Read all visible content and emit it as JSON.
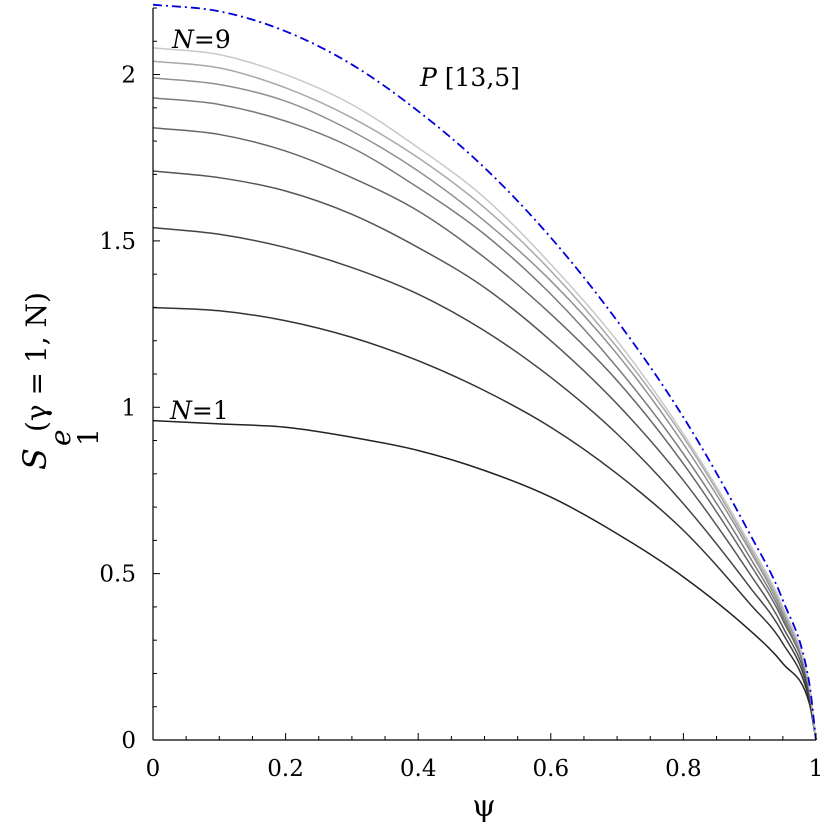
{
  "chart_data": {
    "type": "line",
    "title": "",
    "xlabel": "ψ",
    "ylabel": {
      "main": "S",
      "sub1": "e",
      "sub2": "1",
      "args": "(γ = 1, N)"
    },
    "xlim": [
      0,
      1
    ],
    "ylim": [
      0,
      2.2
    ],
    "xticks": [
      0,
      0.2,
      0.4,
      0.6,
      0.8,
      1
    ],
    "xtick_labels": [
      "0",
      "0.2",
      "0.4",
      "0.6",
      "0.8",
      "1"
    ],
    "yticks": [
      0,
      0.5,
      1,
      1.5,
      2
    ],
    "ytick_labels": [
      "0",
      "0.5",
      "1",
      "1.5",
      "2"
    ],
    "grid": false,
    "x": [
      0,
      0.1,
      0.2,
      0.3,
      0.4,
      0.5,
      0.6,
      0.7,
      0.8,
      0.9,
      0.95,
      0.99,
      1.0
    ],
    "series": [
      {
        "values": [
          0.96,
          0.95,
          0.94,
          0.91,
          0.87,
          0.81,
          0.73,
          0.62,
          0.49,
          0.33,
          0.23,
          0.11,
          0.0
        ],
        "color": "#222222",
        "dash": "solid"
      },
      {
        "values": [
          1.3,
          1.29,
          1.26,
          1.21,
          1.14,
          1.05,
          0.94,
          0.8,
          0.63,
          0.41,
          0.29,
          0.12,
          0.0
        ],
        "color": "#333333",
        "dash": "solid"
      },
      {
        "values": [
          1.54,
          1.52,
          1.48,
          1.42,
          1.34,
          1.23,
          1.09,
          0.92,
          0.71,
          0.46,
          0.32,
          0.13,
          0.0
        ],
        "color": "#444444",
        "dash": "solid"
      },
      {
        "values": [
          1.71,
          1.69,
          1.65,
          1.58,
          1.48,
          1.36,
          1.2,
          1.01,
          0.78,
          0.5,
          0.34,
          0.14,
          0.0
        ],
        "color": "#555555",
        "dash": "solid"
      },
      {
        "values": [
          1.84,
          1.82,
          1.77,
          1.69,
          1.59,
          1.45,
          1.28,
          1.08,
          0.83,
          0.53,
          0.36,
          0.15,
          0.0
        ],
        "color": "#666666",
        "dash": "solid"
      },
      {
        "values": [
          1.93,
          1.91,
          1.86,
          1.78,
          1.66,
          1.52,
          1.34,
          1.12,
          0.86,
          0.55,
          0.37,
          0.15,
          0.0
        ],
        "color": "#7a7a7a",
        "dash": "solid"
      },
      {
        "values": [
          1.99,
          1.97,
          1.92,
          1.83,
          1.71,
          1.56,
          1.38,
          1.16,
          0.89,
          0.57,
          0.38,
          0.16,
          0.0
        ],
        "color": "#909090",
        "dash": "solid"
      },
      {
        "values": [
          2.04,
          2.02,
          1.96,
          1.87,
          1.75,
          1.6,
          1.41,
          1.18,
          0.91,
          0.58,
          0.39,
          0.16,
          0.0
        ],
        "color": "#a8a8a8",
        "dash": "solid"
      },
      {
        "values": [
          2.08,
          2.06,
          2.0,
          1.91,
          1.78,
          1.63,
          1.43,
          1.2,
          0.92,
          0.59,
          0.4,
          0.16,
          0.0
        ],
        "color": "#c8c8c8",
        "dash": "solid"
      },
      {
        "values": [
          2.21,
          2.19,
          2.13,
          2.03,
          1.89,
          1.72,
          1.51,
          1.26,
          0.97,
          0.62,
          0.42,
          0.17,
          0.0
        ],
        "color": "#0000dd",
        "dash": "dashdot"
      }
    ],
    "annotations": {
      "n9": {
        "italic": "N",
        "rest": "=9"
      },
      "p": {
        "italic": "P",
        "rest": " [13,5]"
      },
      "n1": {
        "italic": "N",
        "rest": "=1"
      }
    }
  }
}
